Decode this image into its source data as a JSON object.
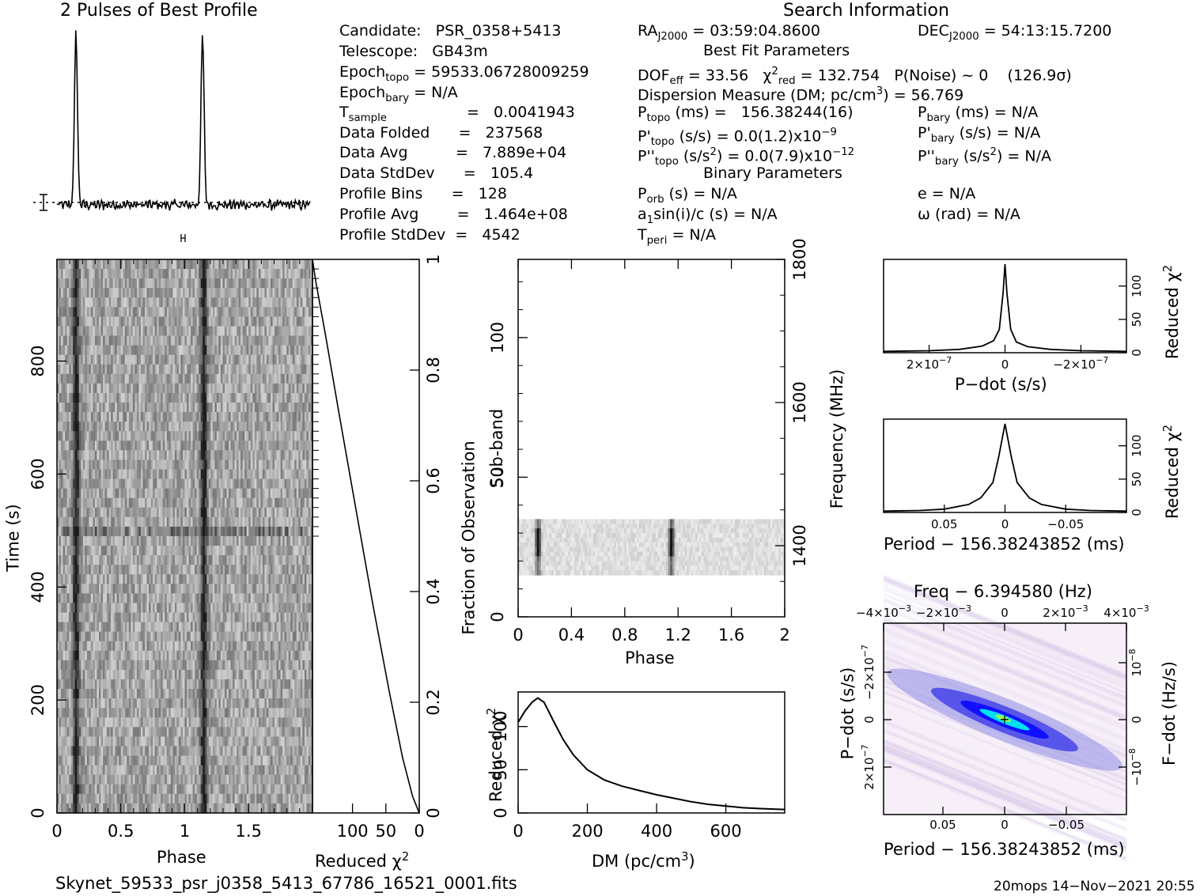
{
  "header": {
    "profile_title": "2 Pulses of Best Profile",
    "search_title": "Search Information",
    "candidate": "Candidate:   PSR_0358+5413",
    "telescope": "Telescope:   GB43m",
    "epoch_topo": "Epoch",
    "epoch_topo_sub": "topo",
    "epoch_topo_val": " = 59533.06728009259",
    "epoch_bary": "Epoch",
    "epoch_bary_sub": "bary",
    "epoch_bary_val": " = N/A",
    "tsample": "T",
    "tsample_sub": "sample",
    "tsample_val": "=   0.0041943",
    "data_folded": "Data Folded      =   237568",
    "data_avg": "Data Avg          =   7.889e+04",
    "data_stddev": "Data StdDev      =   105.4",
    "profile_bins": "Profile Bins      =   128",
    "profile_avg": "Profile Avg        =   1.464e+08",
    "profile_stddev": "Profile StdDev  =   4542",
    "ra_pre": "RA",
    "ra_sub": "J2000",
    "ra_val": " = 03:59:04.8600",
    "dec_pre": "DEC",
    "dec_sub": "J2000",
    "dec_val": " = 54:13:15.7200",
    "best_fit": "Best Fit Parameters",
    "dof": "DOF",
    "dof_sub": "eff",
    "dof_val": " = 33.56   χ",
    "chi_sup": "2",
    "chi_sub": "red",
    "chi_val": " = 132.754   P(Noise) ~ 0    (126.9σ)",
    "dm_line_a": "Dispersion Measure (DM; pc/cm",
    "dm_line_sup": "3",
    "dm_line_b": ") = 56.769",
    "ptopo": "P",
    "ptopo_sub": "topo",
    "ptopo_val": " (ms) =   156.38244(16)",
    "pbary": "P",
    "pbary_sub": "bary",
    "pbary_val": " (ms) = N/A",
    "pdtopo": "P'",
    "pdtopo_sub": "topo",
    "pdtopo_val": " (s/s) = 0.0(1.2)x10",
    "pdtopo_exp": "−9",
    "pdbary": "P'",
    "pdbary_sub": "bary",
    "pdbary_val": " (s/s) = N/A",
    "pddtopo": "P''",
    "pddtopo_sub": "topo",
    "pddtopo_val": " (s/s",
    "pddtopo_sup": "2",
    "pddtopo_val2": ") = 0.0(7.9)x10",
    "pddtopo_exp": "−12",
    "pddbary": "P''",
    "pddbary_sub": "bary",
    "pddbary_val": " (s/s",
    "pddbary_sup": "2",
    "pddbary_val2": ") = N/A",
    "binary": "Binary Parameters",
    "porb": "P",
    "porb_sub": "orb",
    "porb_val": " (s) = N/A",
    "e_val": "e = N/A",
    "a1_a": "a",
    "a1_sub": "1",
    "a1_b": "sin(i)/c (s) = N/A",
    "omega": "ω (rad) = N/A",
    "tperi": "T",
    "tperi_sub": "peri",
    "tperi_val": " = N/A"
  },
  "footer": {
    "filename": "Skynet_59533_psr_j0358_5413_67786_16521_0001.fits",
    "stamp": "20mops 14−Nov−2021 20:55"
  },
  "chart_data": [
    {
      "type": "line",
      "name_id": "profile",
      "title": "2 Pulses of Best Profile",
      "x": "phase 0–2",
      "peaks_at_phase": [
        0.15,
        1.15
      ]
    },
    {
      "type": "heatmap",
      "name_id": "time-phase",
      "xlabel": "Phase",
      "ylabel": "Time (s)",
      "xticks": [
        "0",
        "0.5",
        "1",
        "1.5"
      ],
      "yticks": [
        "0",
        "200",
        "400",
        "600",
        "800"
      ],
      "xlim": [
        0,
        2
      ],
      "ylim": [
        0,
        980
      ],
      "pulse_phases": [
        0.15,
        1.15
      ]
    },
    {
      "type": "line",
      "name_id": "reduced-chi2-vs-time",
      "xlabel": "Reduced χ",
      "xlabel_sup": "2",
      "ylabel": "Fraction of Observation",
      "xticks": [
        "100",
        "50",
        "0"
      ],
      "yticks": [
        "0",
        "0.2",
        "0.4",
        "0.6",
        "0.8",
        "1"
      ],
      "xlim": [
        160,
        0
      ],
      "ylim": [
        0,
        1
      ],
      "x": [
        0,
        10,
        25,
        45,
        70,
        95,
        120,
        140,
        155,
        160
      ],
      "y": [
        0,
        0.03,
        0.1,
        0.22,
        0.38,
        0.55,
        0.72,
        0.86,
        0.96,
        1.0
      ]
    },
    {
      "type": "heatmap",
      "name_id": "subband-phase",
      "xlabel": "Phase",
      "ylabel": "Sub-band",
      "y2label": "Frequency (MHz)",
      "xticks": [
        "0",
        "0.4",
        "0.8",
        "1.2",
        "1.6",
        "2"
      ],
      "yticks": [
        "0",
        "50",
        "100"
      ],
      "y2ticks": [
        "1400",
        "1600",
        "1800"
      ],
      "xlim": [
        0,
        2
      ],
      "ylim": [
        0,
        128
      ],
      "active_subbands": [
        15,
        35
      ],
      "pulse_phases": [
        0.15,
        1.15
      ]
    },
    {
      "type": "line",
      "name_id": "chi2-vs-dm",
      "xlabel": "DM (pc/cm",
      "xlabel_sup": "3",
      "xlabel_end": ")",
      "ylabel": "Reduced χ",
      "ylabel_sup": "2",
      "xticks": [
        "0",
        "200",
        "400",
        "600"
      ],
      "yticks": [
        "0",
        "50",
        "100"
      ],
      "xlim": [
        0,
        770
      ],
      "ylim": [
        0,
        140
      ],
      "x": [
        0,
        20,
        40,
        57,
        75,
        100,
        130,
        160,
        200,
        250,
        300,
        350,
        400,
        450,
        500,
        550,
        600,
        650,
        700,
        770
      ],
      "y": [
        105,
        118,
        128,
        133,
        128,
        108,
        85,
        67,
        50,
        38,
        31,
        26,
        21,
        17,
        13,
        10,
        8,
        6,
        5,
        4
      ]
    },
    {
      "type": "line",
      "name_id": "chi2-vs-pdot",
      "xlabel": "P−dot (s/s)",
      "ylabel": "Reduced χ",
      "ylabel_sup": "2",
      "xticks": [
        "2×10",
        "0",
        "−2×10"
      ],
      "xtick_exp": "−7",
      "yticks": [
        "0",
        "50",
        "100"
      ],
      "xlim": [
        3.2e-07,
        -3.2e-07
      ],
      "ylim": [
        0,
        140
      ],
      "x": [
        3.2e-07,
        2e-07,
        1.2e-07,
        6e-08,
        3e-08,
        1.5e-08,
        5e-09,
        0,
        -5e-09,
        -1.5e-08,
        -3e-08,
        -6e-08,
        -1.2e-07,
        -2e-07,
        -3.2e-07
      ],
      "y": [
        2,
        3,
        5,
        10,
        18,
        35,
        90,
        133,
        90,
        35,
        16,
        9,
        5,
        3,
        2
      ]
    },
    {
      "type": "line",
      "name_id": "chi2-vs-period",
      "xlabel": "Period − 156.38243852 (ms)",
      "ylabel": "Reduced χ",
      "ylabel_sup": "2",
      "xticks": [
        "0.05",
        "0",
        "−0.05"
      ],
      "yticks": [
        "0",
        "50",
        "100"
      ],
      "xlim": [
        0.1,
        -0.1
      ],
      "ylim": [
        0,
        140
      ],
      "x": [
        0.1,
        0.07,
        0.05,
        0.03,
        0.02,
        0.01,
        0.005,
        0,
        -0.005,
        -0.01,
        -0.02,
        -0.03,
        -0.05,
        -0.07,
        -0.1
      ],
      "y": [
        2,
        3,
        5,
        12,
        22,
        45,
        85,
        133,
        85,
        45,
        22,
        12,
        5,
        3,
        2
      ]
    },
    {
      "type": "heatmap",
      "name_id": "period-pdot",
      "title": "Freq − 6.394580 (Hz)",
      "xlabel": "Period − 156.38243852 (ms)",
      "ylabel": "P−dot (s/s)",
      "y2label": "F−dot (Hz/s)",
      "xticks": [
        "0.05",
        "0",
        "−0.05"
      ],
      "x2ticks": [
        "−4×10",
        "−2×10",
        "0",
        "2×10",
        "4×10"
      ],
      "x2tick_exp": "−3",
      "yticks": [
        "−2×10",
        "0",
        "2×10"
      ],
      "ytick_exp": "−7",
      "y2ticks": [
        "10",
        "0",
        "−10"
      ],
      "y2tick_exp": "−8",
      "xlim": [
        0.1,
        -0.1
      ],
      "best": [
        0,
        0
      ]
    }
  ]
}
